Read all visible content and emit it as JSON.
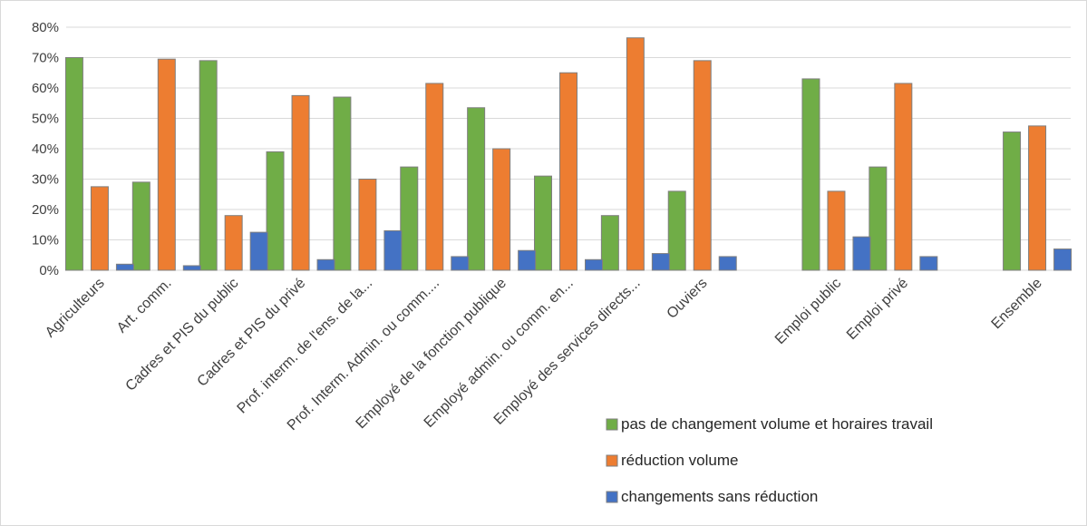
{
  "chart_data": {
    "type": "bar",
    "title": "",
    "xlabel": "",
    "ylabel": "",
    "ylim": [
      0,
      0.8
    ],
    "yticks": [
      0,
      0.1,
      0.2,
      0.3,
      0.4,
      0.5,
      0.6,
      0.7,
      0.8
    ],
    "ytick_labels": [
      "0%",
      "10%",
      "20%",
      "30%",
      "40%",
      "50%",
      "60%",
      "70%",
      "80%"
    ],
    "grid": true,
    "legend_position": "bottom-right",
    "categories": [
      "Agriculteurs",
      "Art. comm.",
      "Cadres et PIS du public",
      "Cadres et PIS du privé",
      "Prof. interm. de l'ens. de la...",
      "Prof. Interm. Admin. ou comm....",
      "Employé de la fonction publique",
      "Employé admin. ou comm. en...",
      "Employé des services directs...",
      "Ouviers",
      "",
      "Emploi public",
      "Emploi privé",
      "",
      "Ensemble"
    ],
    "series": [
      {
        "name": "pas de changement volume et horaires travail",
        "color": "#70ad47",
        "values": [
          0.7,
          0.29,
          0.69,
          0.39,
          0.57,
          0.34,
          0.535,
          0.31,
          0.18,
          0.26,
          null,
          0.63,
          0.34,
          null,
          0.455
        ]
      },
      {
        "name": "réduction volume",
        "color": "#ed7d31",
        "values": [
          0.275,
          0.695,
          0.18,
          0.575,
          0.3,
          0.615,
          0.4,
          0.65,
          0.765,
          0.69,
          null,
          0.26,
          0.615,
          null,
          0.475
        ]
      },
      {
        "name": "changements sans réduction",
        "color": "#4472c4",
        "values": [
          0.02,
          0.015,
          0.125,
          0.035,
          0.13,
          0.045,
          0.065,
          0.035,
          0.055,
          0.045,
          null,
          0.11,
          0.045,
          null,
          0.07
        ]
      }
    ]
  }
}
